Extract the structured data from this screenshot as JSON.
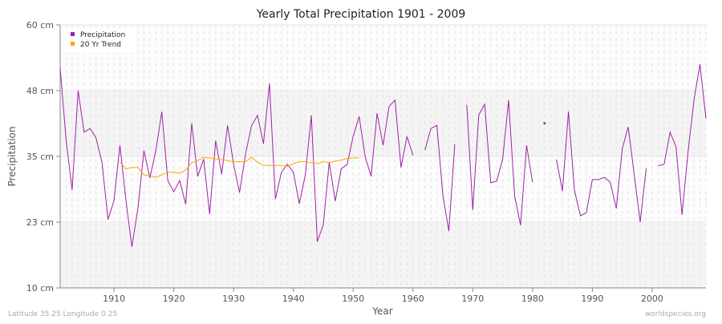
{
  "chart_data": {
    "type": "line",
    "title": "Yearly Total Precipitation 1901 - 2009",
    "xlabel": "Year",
    "ylabel": "Precipitation",
    "xlim": [
      1901,
      2009
    ],
    "ylim": [
      10,
      60
    ],
    "y_ticks": [
      10,
      22.5,
      35,
      47.5,
      60
    ],
    "y_tick_labels": [
      "10 cm",
      "23 cm",
      "35 cm",
      "48 cm",
      "60 cm"
    ],
    "x_ticks": [
      1910,
      1920,
      1930,
      1940,
      1950,
      1960,
      1970,
      1980,
      1990,
      2000
    ],
    "x_tick_labels": [
      "1910",
      "1920",
      "1930",
      "1940",
      "1950",
      "1960",
      "1970",
      "1980",
      "1990",
      "2000"
    ],
    "grid": true,
    "legend_position": "top-left",
    "series": [
      {
        "name": "Precipitation",
        "color": "#a020a8",
        "start_year": 1901,
        "values": [
          51.8,
          38.0,
          28.6,
          47.5,
          39.6,
          40.3,
          38.5,
          33.8,
          23.0,
          26.6,
          37.1,
          26.6,
          17.8,
          25.1,
          36.1,
          30.9,
          36.1,
          43.5,
          30.4,
          28.3,
          30.4,
          25.9,
          41.3,
          31.2,
          34.5,
          24.0,
          38.0,
          31.6,
          40.9,
          33.5,
          28.1,
          35.5,
          40.8,
          42.8,
          37.4,
          48.9,
          26.9,
          32.0,
          33.5,
          32.0,
          26.0,
          31.5,
          42.8,
          18.8,
          22.0,
          33.9,
          26.5,
          32.6,
          33.5,
          38.8,
          42.6,
          35.0,
          31.2,
          43.2,
          37.1,
          44.5,
          45.7,
          32.9,
          38.8,
          35.2,
          null,
          36.2,
          40.3,
          40.9,
          27.7,
          20.8,
          37.3,
          null,
          44.8,
          24.8,
          42.9,
          44.9,
          30.0,
          30.3,
          34.5,
          45.7,
          27.5,
          21.9,
          37.1,
          30.1,
          null,
          41.3,
          null,
          34.4,
          28.4,
          43.5,
          28.6,
          23.7,
          24.3,
          30.6,
          30.6,
          31.0,
          30.1,
          25.1,
          36.4,
          40.6,
          31.5,
          22.5,
          32.7,
          null,
          33.2,
          33.5,
          39.6,
          36.8,
          23.9,
          35.8,
          45.7,
          52.5,
          42.2
        ]
      },
      {
        "name": "20 Yr Trend",
        "color": "#ffa500",
        "start_year": 1911,
        "values": [
          33.9,
          32.6,
          32.9,
          32.9,
          31.5,
          31.3,
          31.0,
          31.5,
          32.0,
          32.0,
          31.8,
          32.4,
          33.8,
          34.2,
          34.8,
          34.7,
          34.5,
          34.4,
          34.2,
          34.0,
          34.0,
          34.0,
          34.8,
          33.9,
          33.3,
          33.3,
          33.3,
          33.3,
          33.1,
          33.6,
          34.0,
          34.0,
          33.8,
          33.6,
          34.0,
          33.8,
          34.1,
          34.3,
          34.6,
          34.7,
          34.7
        ]
      }
    ]
  },
  "footer": {
    "location": "Latitude 35.25 Longitude 0.25",
    "source": "worldspecies.org"
  }
}
